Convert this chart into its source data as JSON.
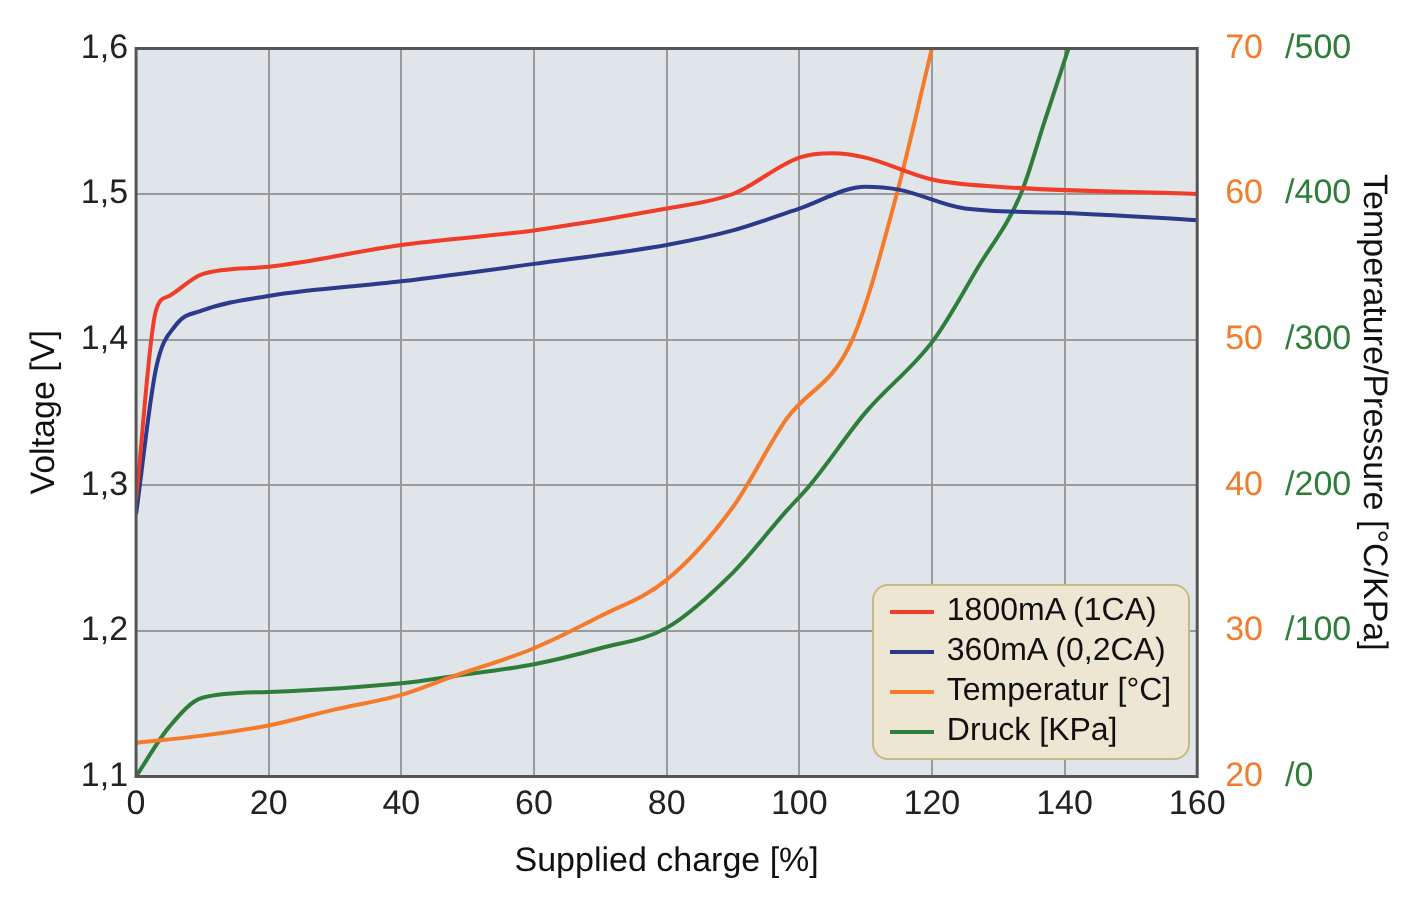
{
  "chart_data": {
    "type": "line",
    "xlabel": "Supplied charge [%]",
    "ylabel": "Voltage [V]",
    "y2label": "Temperature/Pressure [°C/KPa]",
    "xlim": [
      0,
      160
    ],
    "xticks": [
      0,
      20,
      40,
      60,
      80,
      100,
      120,
      140,
      160
    ],
    "ylim": [
      1.1,
      1.6
    ],
    "yticks": [
      {
        "value": 1.1,
        "label": "1,1"
      },
      {
        "value": 1.2,
        "label": "1,2"
      },
      {
        "value": 1.3,
        "label": "1,3"
      },
      {
        "value": 1.4,
        "label": "1,4"
      },
      {
        "value": 1.5,
        "label": "1,5"
      },
      {
        "value": 1.6,
        "label": "1,6"
      }
    ],
    "y2lim": [
      20,
      70
    ],
    "y2ticks": [
      20,
      30,
      40,
      50,
      60,
      70
    ],
    "y3lim": [
      0,
      500
    ],
    "y3ticks": [
      {
        "value": 0,
        "label": "/0"
      },
      {
        "value": 100,
        "label": "/100"
      },
      {
        "value": 200,
        "label": "/200"
      },
      {
        "value": 300,
        "label": "/300"
      },
      {
        "value": 400,
        "label": "/400"
      },
      {
        "value": 500,
        "label": "/500"
      }
    ],
    "grid": true,
    "legend": "bottom right",
    "marker": "none",
    "line_style": "solid",
    "series": [
      {
        "name": "1800mA (1CA)",
        "color": "#f03c28",
        "x": [
          0,
          3,
          5,
          10,
          20,
          40,
          60,
          80,
          90,
          100,
          105,
          110,
          120,
          130,
          160
        ],
        "values": [
          1.29,
          1.42,
          1.43,
          1.445,
          1.45,
          1.465,
          1.475,
          1.49,
          1.5,
          1.525,
          1.528,
          1.525,
          1.51,
          1.505,
          1.5
        ]
      },
      {
        "name": "360mA (0,2CA)",
        "color": "#2c3a8c",
        "x": [
          0,
          3,
          6,
          10,
          20,
          40,
          60,
          80,
          90,
          100,
          110,
          115,
          125,
          140,
          160
        ],
        "values": [
          1.28,
          1.38,
          1.41,
          1.42,
          1.43,
          1.44,
          1.452,
          1.465,
          1.475,
          1.49,
          1.505,
          1.503,
          1.49,
          1.487,
          1.482
        ]
      },
      {
        "name": "Temperatur [°C]",
        "color": "#f57a2a",
        "axis": "y2",
        "x": [
          0,
          10,
          20,
          30,
          40,
          48,
          60,
          70,
          80,
          90,
          98,
          108,
          114.7,
          120
        ],
        "values": [
          22.3,
          22.8,
          23.5,
          24.6,
          25.6,
          26.9,
          28.8,
          31,
          33.5,
          38.5,
          44.5,
          50,
          60,
          70
        ]
      },
      {
        "name": "Druck [KPa]",
        "color": "#2e7d3a",
        "axis": "y3",
        "x": [
          0,
          5,
          10,
          20,
          40,
          48,
          60,
          70,
          80,
          90,
          98,
          101.6,
          110,
          120.3,
          127,
          133.4,
          137,
          140.6
        ],
        "values": [
          0,
          34,
          54,
          58,
          64,
          69,
          77,
          88,
          102,
          140,
          182,
          200,
          250,
          300,
          350,
          400,
          450,
          500
        ]
      }
    ]
  }
}
